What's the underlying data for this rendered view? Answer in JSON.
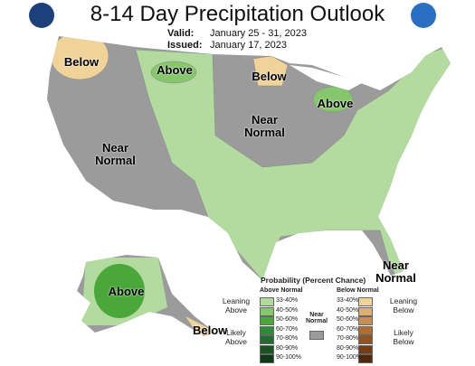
{
  "header": {
    "title": "8-14 Day Precipitation Outlook",
    "valid_label": "Valid:",
    "valid": "January 25 - 31, 2023",
    "issued_label": "Issued:",
    "issued": "January 17, 2023"
  },
  "map_labels": [
    {
      "text": "Below"
    },
    {
      "text": "Above"
    },
    {
      "text": "Below"
    },
    {
      "text": "Near Normal"
    },
    {
      "text": "Above"
    },
    {
      "text": "Near Normal"
    },
    {
      "text": "Near Normal"
    },
    {
      "text": "Above"
    },
    {
      "text": "Below"
    }
  ],
  "legend": {
    "title": "Probability (Percent Chance)",
    "above_header": "Above Normal",
    "near_header": "Near Normal",
    "below_header": "Below Normal",
    "above_levels": [
      "33-40%",
      "40-50%",
      "50-60%",
      "60-70%",
      "70-80%",
      "80-90%",
      "90-100%"
    ],
    "above_colors": [
      "#b3dba0",
      "#86c66c",
      "#4aa83a",
      "#2f8a3a",
      "#236b2f",
      "#1a5224",
      "#0f3a17"
    ],
    "below_levels": [
      "33-40%",
      "40-50%",
      "50-60%",
      "60-70%",
      "70-80%",
      "80-90%",
      "90-100%"
    ],
    "below_colors": [
      "#f0d398",
      "#ddb070",
      "#c98d4f",
      "#b26d32",
      "#94521f",
      "#753c15",
      "#55280c"
    ],
    "near_color": "#9b9b9b",
    "leaning_above": "Leaning Above",
    "likely_above": "Likely Above",
    "leaning_below": "Leaning Below",
    "likely_below": "Likely Below"
  }
}
